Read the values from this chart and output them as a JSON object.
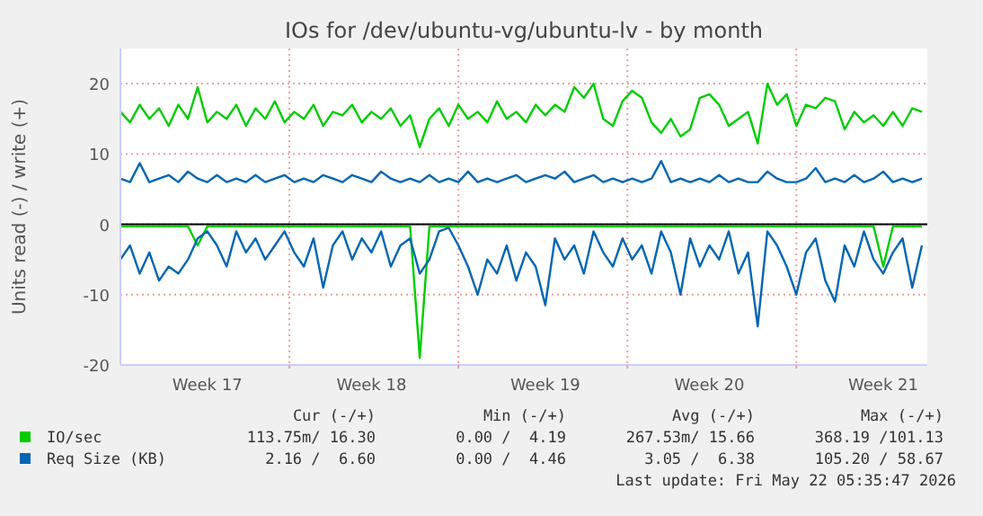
{
  "chart_data": {
    "type": "line",
    "title": "IOs for /dev/ubuntu-vg/ubuntu-lv - by month",
    "ylabel": "Units read (-) / write (+)",
    "categories": [
      null,
      null,
      null,
      null,
      null,
      null,
      null,
      null,
      null,
      "Week 17",
      null,
      null,
      null,
      null,
      null,
      null,
      null,
      null,
      null,
      null,
      null,
      null,
      null,
      null,
      null,
      null,
      "Week 18",
      null,
      null,
      null,
      null,
      null,
      null,
      null,
      null,
      null,
      null,
      null,
      null,
      null,
      null,
      null,
      null,
      null,
      "Week 19",
      null,
      null,
      null,
      null,
      null,
      null,
      null,
      null,
      null,
      null,
      null,
      null,
      null,
      null,
      null,
      null,
      "Week 20",
      null,
      null,
      null,
      null,
      null,
      null,
      null,
      null,
      null,
      null,
      null,
      null,
      null,
      null,
      null,
      null,
      null,
      "Week 21",
      null,
      null,
      null,
      null
    ],
    "ylim": [
      -20,
      25
    ],
    "yticks": [
      -20,
      -10,
      0,
      10,
      20
    ],
    "grid": true,
    "legend": "bottom",
    "series": [
      {
        "name": "IO/sec",
        "color": "#00cc00",
        "values": [
          16,
          14.5,
          17,
          15,
          16.5,
          14,
          17,
          15,
          19.5,
          14.5,
          16,
          15,
          17,
          14,
          16.5,
          15,
          17.5,
          14.5,
          16,
          15,
          17,
          14,
          16,
          15.5,
          17,
          14.5,
          16,
          15,
          16.5,
          14,
          15.5,
          11,
          15,
          16.5,
          14,
          17,
          15,
          16,
          14.5,
          17.5,
          15,
          16,
          14.5,
          17,
          15.5,
          17,
          16,
          19.5,
          18,
          20,
          15,
          14,
          17.5,
          19,
          18,
          14.5,
          13,
          15,
          12.5,
          13.5,
          18,
          18.5,
          17,
          14,
          15,
          16,
          11.5,
          20,
          17,
          18.5,
          14,
          17,
          16.5,
          18,
          17.5,
          13.5,
          16,
          14.5,
          15.5,
          14,
          16,
          14,
          16.5,
          16
        ]
      },
      {
        "color": "#00cc00",
        "values": [
          -0.3,
          -0.3,
          -0.3,
          -0.3,
          -0.3,
          -0.3,
          -0.3,
          -0.3,
          -3,
          -0.3,
          -0.3,
          -0.3,
          -0.3,
          -0.3,
          -0.3,
          -0.3,
          -0.3,
          -0.3,
          -0.3,
          -0.3,
          -0.3,
          -0.3,
          -0.3,
          -0.3,
          -0.3,
          -0.3,
          -0.3,
          -0.3,
          -0.3,
          -0.3,
          -0.3,
          -19,
          -0.3,
          -0.3,
          -0.3,
          -0.3,
          -0.3,
          -0.3,
          -0.3,
          -0.3,
          -0.3,
          -0.3,
          -0.3,
          -0.3,
          -0.3,
          -0.3,
          -0.3,
          -0.3,
          -0.3,
          -0.3,
          -0.3,
          -0.3,
          -0.3,
          -0.3,
          -0.3,
          -0.3,
          -0.3,
          -0.3,
          -0.3,
          -0.3,
          -0.3,
          -0.3,
          -0.3,
          -0.3,
          -0.3,
          -0.3,
          -0.3,
          -0.3,
          -0.3,
          -0.3,
          -0.3,
          -0.3,
          -0.3,
          -0.3,
          -0.3,
          -0.3,
          -0.3,
          -0.3,
          -0.3,
          -6,
          -0.3,
          -0.3,
          -0.3,
          -0.3
        ]
      },
      {
        "name": "Req Size (KB)",
        "color": "#0066b3",
        "values": [
          6.5,
          6,
          8.7,
          6,
          6.5,
          7,
          6,
          7.5,
          6.5,
          6,
          7,
          6,
          6.5,
          6,
          7,
          6,
          6.5,
          7,
          6,
          6.5,
          6,
          7,
          6.5,
          6,
          7,
          6.5,
          6,
          7.5,
          6.5,
          6,
          6.5,
          6,
          7,
          6,
          6.5,
          6,
          7.5,
          6,
          6.5,
          6,
          6.5,
          7,
          6,
          6.5,
          7,
          6.5,
          7.5,
          6,
          6.5,
          7,
          6,
          6.5,
          6,
          6.5,
          6,
          6.5,
          9,
          6,
          6.5,
          6,
          6.5,
          6,
          7,
          6,
          6.5,
          6,
          6,
          7.5,
          6.5,
          6,
          6,
          6.5,
          8,
          6,
          6.5,
          6,
          7,
          6,
          6.5,
          7.5,
          6,
          6.5,
          6,
          6.5
        ]
      },
      {
        "color": "#0066b3",
        "values": [
          -5,
          -3,
          -7,
          -4,
          -8,
          -6,
          -7,
          -5,
          -2,
          -1,
          -3,
          -6,
          -1,
          -4,
          -2,
          -5,
          -3,
          -1,
          -4,
          -6,
          -2,
          -9,
          -3,
          -1,
          -5,
          -2,
          -4,
          -1,
          -6,
          -3,
          -2,
          -7,
          -5,
          -1,
          -0.5,
          -3,
          -6,
          -10,
          -5,
          -7,
          -3,
          -8,
          -4,
          -6,
          -11.5,
          -2,
          -5,
          -3,
          -7,
          -1,
          -4,
          -6,
          -2,
          -5,
          -3,
          -7,
          -1,
          -4,
          -10,
          -2,
          -6,
          -3,
          -5,
          -1,
          -7,
          -4,
          -14.5,
          -1,
          -3,
          -6,
          -10,
          -4,
          -2,
          -8,
          -11,
          -3,
          -6,
          -1,
          -5,
          -7,
          -4,
          -2,
          -9,
          -3
        ]
      }
    ],
    "ref_lines": [
      {
        "axis": "y",
        "value": 0,
        "color": "#000000"
      }
    ],
    "annotations": [
      "Cur (-/+)",
      "Min (-/+)",
      "Avg (-/+)",
      "Max (-/+)",
      "113.75m/ 16.30",
      "0.00 /  4.19",
      "267.53m/ 15.66",
      "368.19 /101.13",
      "2.16 /  6.60",
      "0.00 /  4.46",
      "3.05 /  6.38",
      "105.20 / 58.67",
      "Last update: Fri May 22 05:35:47 2026"
    ]
  }
}
